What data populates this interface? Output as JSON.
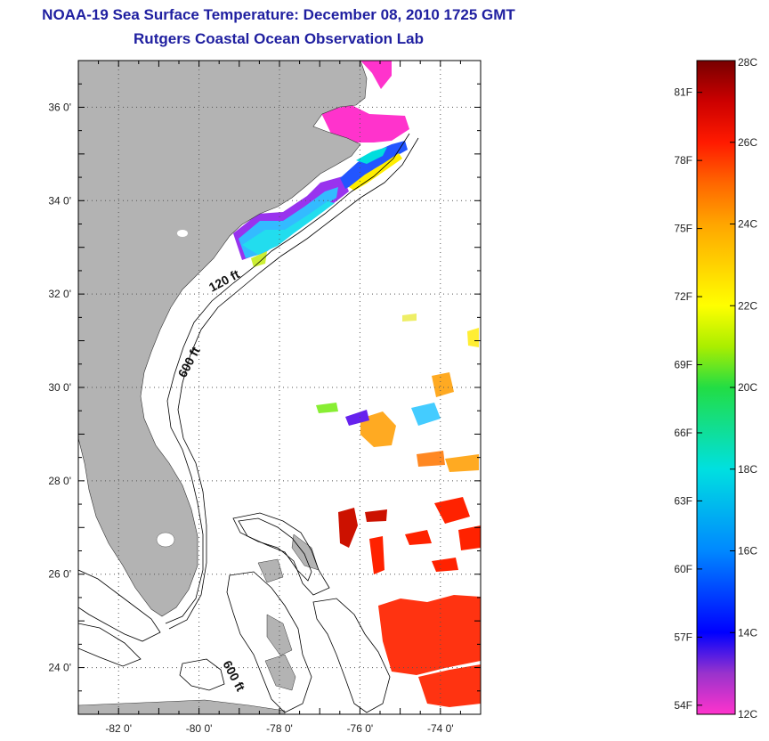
{
  "title": {
    "line1": "NOAA-19 Sea Surface Temperature:  December 08, 2010 1725 GMT",
    "line2": "Rutgers Coastal Ocean Observation Lab"
  },
  "map": {
    "lon_range": [
      -83,
      -73
    ],
    "lat_range": [
      23,
      37
    ],
    "lon_ticks": [
      {
        "value": -82,
        "label": "-82 0'"
      },
      {
        "value": -80,
        "label": "-80 0'"
      },
      {
        "value": -78,
        "label": "-78 0'"
      },
      {
        "value": -76,
        "label": "-76 0'"
      },
      {
        "value": -74,
        "label": "-74 0'"
      }
    ],
    "lat_ticks": [
      {
        "value": 36,
        "label": "36 0'"
      },
      {
        "value": 34,
        "label": "34 0'"
      },
      {
        "value": 32,
        "label": "32 0'"
      },
      {
        "value": 30,
        "label": "30 0'"
      },
      {
        "value": 28,
        "label": "28 0'"
      },
      {
        "value": 26,
        "label": "26 0'"
      },
      {
        "value": 24,
        "label": "24 0'"
      }
    ],
    "isobaths": [
      {
        "label": "120 ft",
        "lon": -78.4,
        "lat": 32.4
      },
      {
        "label": "600 ft",
        "lon": -79.4,
        "lat": 30.8
      },
      {
        "label": "600 ft",
        "lon": -78.2,
        "lat": 23.9
      }
    ],
    "colors": {
      "land": "#b3b3b3",
      "ocean": "#ffffff",
      "grid": "#555555"
    }
  },
  "colorbar": {
    "c_range": [
      12,
      28
    ],
    "celsius": [
      {
        "value": 28,
        "label": "28C"
      },
      {
        "value": 26,
        "label": "26C"
      },
      {
        "value": 24,
        "label": "24C"
      },
      {
        "value": 22,
        "label": "22C"
      },
      {
        "value": 20,
        "label": "20C"
      },
      {
        "value": 18,
        "label": "18C"
      },
      {
        "value": 16,
        "label": "16C"
      },
      {
        "value": 14,
        "label": "14C"
      },
      {
        "value": 12,
        "label": "12C"
      }
    ],
    "fahrenheit": [
      {
        "value": 81,
        "label": "81F"
      },
      {
        "value": 78,
        "label": "78F"
      },
      {
        "value": 75,
        "label": "75F"
      },
      {
        "value": 72,
        "label": "72F"
      },
      {
        "value": 69,
        "label": "69F"
      },
      {
        "value": 66,
        "label": "66F"
      },
      {
        "value": 63,
        "label": "63F"
      },
      {
        "value": 60,
        "label": "60F"
      },
      {
        "value": 57,
        "label": "57F"
      },
      {
        "value": 54,
        "label": "54F"
      }
    ],
    "gradient_stops": [
      {
        "c": 12,
        "color": "#ff33cc"
      },
      {
        "c": 13,
        "color": "#9933cc"
      },
      {
        "c": 14,
        "color": "#0000ff"
      },
      {
        "c": 16,
        "color": "#0088ff"
      },
      {
        "c": 18,
        "color": "#00e0e0"
      },
      {
        "c": 20,
        "color": "#22dd44"
      },
      {
        "c": 21,
        "color": "#aaee00"
      },
      {
        "c": 22,
        "color": "#ffff00"
      },
      {
        "c": 24,
        "color": "#ffa500"
      },
      {
        "c": 25,
        "color": "#ff6600"
      },
      {
        "c": 26,
        "color": "#ff1a00"
      },
      {
        "c": 27,
        "color": "#cc0000"
      },
      {
        "c": 28,
        "color": "#770000"
      }
    ]
  }
}
